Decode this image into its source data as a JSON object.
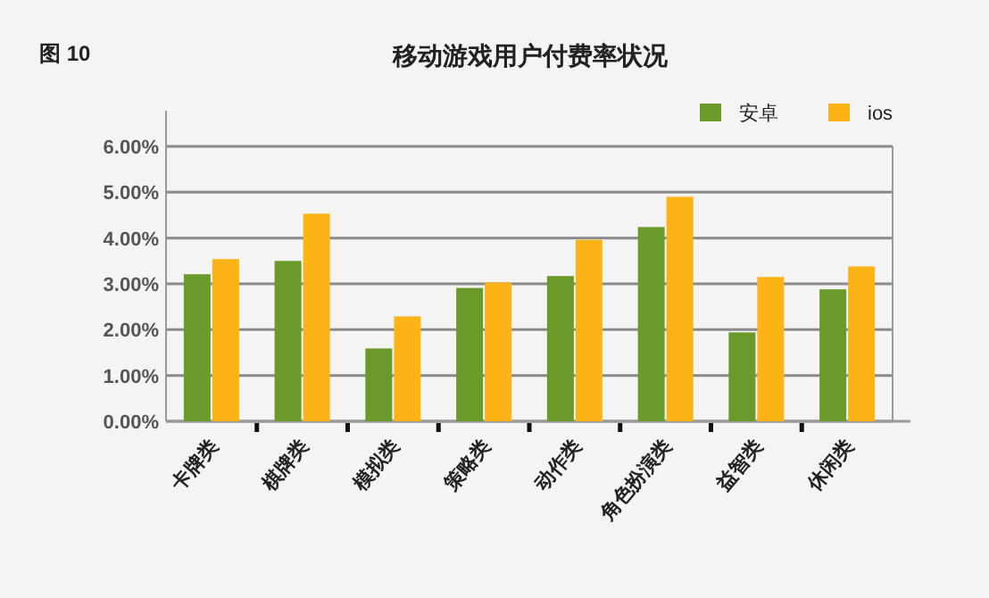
{
  "chart_data": {
    "type": "bar",
    "title": "移动游戏用户付费率状况",
    "annotations": [
      "图 10"
    ],
    "categories": [
      "卡牌类",
      "棋牌类",
      "模拟类",
      "策略类",
      "动作类",
      "角色扮演类",
      "益智类",
      "休闲类"
    ],
    "series": [
      {
        "name": "安卓",
        "color": "#6a9a2a",
        "values": [
          3.21,
          3.5,
          1.59,
          2.91,
          3.17,
          4.24,
          1.94,
          2.88
        ]
      },
      {
        "name": "ios",
        "color": "#fbb316",
        "values": [
          3.54,
          4.53,
          2.29,
          3.03,
          3.96,
          4.9,
          3.15,
          3.38
        ]
      }
    ],
    "ylim": [
      0,
      6
    ],
    "yticks": [
      {
        "value": 0,
        "label": "0.00%"
      },
      {
        "value": 1,
        "label": "1.00%"
      },
      {
        "value": 2,
        "label": "2.00%"
      },
      {
        "value": 3,
        "label": "3.00%"
      },
      {
        "value": 4,
        "label": "4.00%"
      },
      {
        "value": 5,
        "label": "5.00%"
      },
      {
        "value": 6,
        "label": "6.00%"
      }
    ],
    "grid": "y",
    "legend": "top right"
  }
}
